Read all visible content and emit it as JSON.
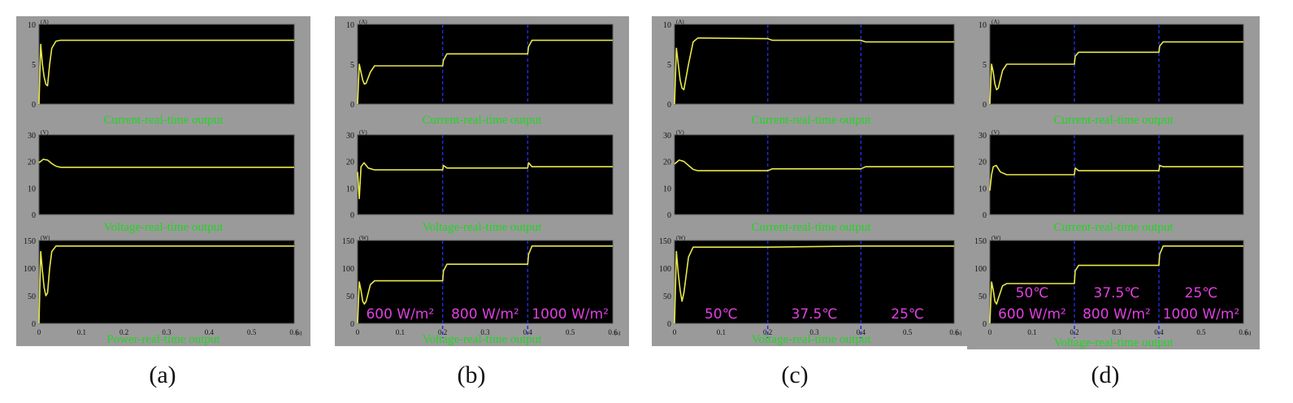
{
  "panel_labels": [
    "(a)",
    "(b)",
    "(c)",
    "(d)"
  ],
  "colors": {
    "frame": "#9a9a9a",
    "plot_bg": "#000000",
    "trace": "#e8e84a",
    "divider": "#1f2bd6",
    "subplot_title": "#1fd61f",
    "condition_label": "#e040e0",
    "tick": "#111111"
  },
  "chart_data": [
    {
      "type": "line",
      "panel": "(a)",
      "x_ticks": [
        "0",
        "0.1",
        "0.2",
        "0.3",
        "0.4",
        "0.5",
        "0.6"
      ],
      "x_unit": "(s)",
      "dividers": [],
      "conditions": [],
      "subplots": [
        {
          "title": "Current-real-time output",
          "unit": "(A)",
          "ylim": [
            0,
            10
          ],
          "y_ticks": [
            "0",
            "5",
            "10"
          ],
          "series": [
            {
              "x": [
                0,
                0.004,
                0.008,
                0.012,
                0.016,
                0.02,
                0.025,
                0.03,
                0.04,
                0.05,
                0.6
              ],
              "y": [
                0,
                7.5,
                5,
                3.4,
                2.5,
                2.3,
                5,
                7,
                7.9,
                8,
                8
              ]
            }
          ]
        },
        {
          "title": "Voltage-real-time output",
          "unit": "(V)",
          "ylim": [
            0,
            30
          ],
          "y_ticks": [
            "0",
            "10",
            "20",
            "30"
          ],
          "series": [
            {
              "x": [
                0,
                0.01,
                0.02,
                0.03,
                0.04,
                0.05,
                0.6
              ],
              "y": [
                19.5,
                20.8,
                20.5,
                19.2,
                18.2,
                17.8,
                17.8
              ]
            }
          ]
        },
        {
          "title": "Power-real-time output",
          "unit": "(W)",
          "ylim": [
            0,
            150
          ],
          "y_ticks": [
            "0",
            "50",
            "100",
            "150"
          ],
          "series": [
            {
              "x": [
                0,
                0.004,
                0.008,
                0.012,
                0.016,
                0.02,
                0.025,
                0.03,
                0.04,
                0.6
              ],
              "y": [
                0,
                130,
                95,
                65,
                50,
                55,
                100,
                130,
                140,
                140
              ]
            }
          ]
        }
      ]
    },
    {
      "type": "line",
      "panel": "(b)",
      "x_ticks": [
        "0",
        "0.1",
        "0.2",
        "0.3",
        "0.4",
        "0.5",
        "0.6"
      ],
      "x_unit": "(s)",
      "dividers": [
        0.2,
        0.4
      ],
      "conditions": [
        {
          "x": 0.1,
          "lines": [
            "600 W/m²"
          ]
        },
        {
          "x": 0.3,
          "lines": [
            "800 W/m²"
          ]
        },
        {
          "x": 0.5,
          "lines": [
            "1000 W/m²"
          ]
        }
      ],
      "subplots": [
        {
          "title": "Current-real-time output",
          "unit": "(A)",
          "ylim": [
            0,
            10
          ],
          "y_ticks": [
            "0",
            "5",
            "10"
          ],
          "series": [
            {
              "x": [
                0,
                0.004,
                0.008,
                0.012,
                0.016,
                0.02,
                0.03,
                0.04,
                0.2,
                0.202,
                0.21,
                0.4,
                0.402,
                0.41,
                0.6
              ],
              "y": [
                0,
                5,
                4,
                3,
                2.5,
                2.6,
                4,
                4.8,
                4.8,
                5.5,
                6.3,
                6.3,
                7.2,
                8,
                8
              ]
            }
          ]
        },
        {
          "title": "Voltage-real-time output",
          "unit": "(V)",
          "ylim": [
            0,
            30
          ],
          "y_ticks": [
            "0",
            "10",
            "20",
            "30"
          ],
          "series": [
            {
              "x": [
                0,
                0.004,
                0.008,
                0.015,
                0.025,
                0.04,
                0.2,
                0.202,
                0.21,
                0.4,
                0.402,
                0.41,
                0.6
              ],
              "y": [
                16,
                6,
                18,
                19.5,
                17.5,
                16.8,
                16.8,
                18.5,
                17.5,
                17.5,
                19.5,
                18,
                18
              ]
            }
          ]
        },
        {
          "title": "Voltage-real-time output",
          "unit": "(W)",
          "ylim": [
            0,
            150
          ],
          "y_ticks": [
            "0",
            "50",
            "100",
            "150"
          ],
          "series": [
            {
              "x": [
                0,
                0.004,
                0.008,
                0.012,
                0.016,
                0.02,
                0.03,
                0.04,
                0.2,
                0.202,
                0.21,
                0.4,
                0.402,
                0.41,
                0.6
              ],
              "y": [
                0,
                75,
                60,
                40,
                35,
                40,
                70,
                77,
                77,
                95,
                107,
                107,
                125,
                140,
                140
              ]
            }
          ]
        }
      ]
    },
    {
      "type": "line",
      "panel": "(c)",
      "x_ticks": [
        "0",
        "0.1",
        "0.2",
        "0.3",
        "0.4",
        "0.5",
        "0.6"
      ],
      "x_unit": "(s)",
      "dividers": [
        0.2,
        0.4
      ],
      "conditions": [
        {
          "x": 0.1,
          "lines": [
            "50℃"
          ]
        },
        {
          "x": 0.3,
          "lines": [
            "37.5℃"
          ]
        },
        {
          "x": 0.5,
          "lines": [
            "25℃"
          ]
        }
      ],
      "subplots": [
        {
          "title": "Current-real-time output",
          "unit": "(A)",
          "ylim": [
            0,
            10
          ],
          "y_ticks": [
            "0",
            "5",
            "10"
          ],
          "series": [
            {
              "x": [
                0,
                0.004,
                0.008,
                0.012,
                0.016,
                0.02,
                0.03,
                0.04,
                0.05,
                0.2,
                0.21,
                0.4,
                0.41,
                0.6
              ],
              "y": [
                0,
                7,
                5,
                3,
                2,
                1.8,
                5,
                7.8,
                8.3,
                8.2,
                8,
                8,
                7.8,
                7.8
              ]
            }
          ]
        },
        {
          "title": "Current-real-time output",
          "unit": "(V)",
          "ylim": [
            0,
            30
          ],
          "y_ticks": [
            "0",
            "10",
            "20",
            "30"
          ],
          "series": [
            {
              "x": [
                0,
                0.01,
                0.02,
                0.03,
                0.04,
                0.05,
                0.2,
                0.21,
                0.4,
                0.41,
                0.6
              ],
              "y": [
                19,
                20.5,
                20,
                18.5,
                17,
                16.5,
                16.5,
                17.2,
                17.2,
                18,
                18
              ]
            }
          ]
        },
        {
          "title": "Voltage-real-time output",
          "unit": "(W)",
          "ylim": [
            0,
            150
          ],
          "y_ticks": [
            "0",
            "50",
            "100",
            "150"
          ],
          "series": [
            {
              "x": [
                0,
                0.004,
                0.008,
                0.012,
                0.016,
                0.02,
                0.03,
                0.04,
                0.2,
                0.4,
                0.6
              ],
              "y": [
                0,
                130,
                90,
                60,
                40,
                55,
                120,
                138,
                138,
                140,
                140
              ]
            }
          ]
        }
      ]
    },
    {
      "type": "line",
      "panel": "(d)",
      "x_ticks": [
        "0",
        "0.1",
        "0.2",
        "0.3",
        "0.4",
        "0.5",
        "0.6"
      ],
      "x_unit": "(s)",
      "dividers": [
        0.2,
        0.4
      ],
      "conditions": [
        {
          "x": 0.1,
          "lines": [
            "50℃",
            "600 W/m²"
          ]
        },
        {
          "x": 0.3,
          "lines": [
            "37.5℃",
            "800 W/m²"
          ]
        },
        {
          "x": 0.5,
          "lines": [
            "25℃",
            "1000 W/m²"
          ]
        }
      ],
      "subplots": [
        {
          "title": "Current-real-time output",
          "unit": "(A)",
          "ylim": [
            0,
            10
          ],
          "y_ticks": [
            "0",
            "5",
            "10"
          ],
          "series": [
            {
              "x": [
                0,
                0.004,
                0.008,
                0.012,
                0.016,
                0.02,
                0.03,
                0.04,
                0.2,
                0.202,
                0.21,
                0.4,
                0.402,
                0.41,
                0.6
              ],
              "y": [
                0,
                5,
                4,
                2.5,
                1.8,
                2,
                4.2,
                5,
                5,
                6,
                6.5,
                6.5,
                7.3,
                7.8,
                7.8
              ]
            }
          ]
        },
        {
          "title": "Current-real-time output",
          "unit": "(V)",
          "ylim": [
            0,
            30
          ],
          "y_ticks": [
            "0",
            "10",
            "20",
            "30"
          ],
          "series": [
            {
              "x": [
                0,
                0.004,
                0.008,
                0.015,
                0.025,
                0.04,
                0.2,
                0.202,
                0.21,
                0.4,
                0.402,
                0.41,
                0.6
              ],
              "y": [
                9,
                15,
                18,
                18.5,
                16,
                15,
                15,
                17.5,
                16.5,
                16.5,
                18.5,
                18,
                18
              ]
            }
          ]
        },
        {
          "title": "Voltage-real-time output",
          "unit": "(W)",
          "ylim": [
            0,
            150
          ],
          "y_ticks": [
            "0",
            "50",
            "100",
            "150"
          ],
          "series": [
            {
              "x": [
                0,
                0.004,
                0.008,
                0.012,
                0.016,
                0.02,
                0.03,
                0.04,
                0.2,
                0.202,
                0.21,
                0.4,
                0.402,
                0.41,
                0.6
              ],
              "y": [
                0,
                75,
                60,
                40,
                35,
                45,
                68,
                72,
                72,
                95,
                105,
                105,
                125,
                140,
                140
              ]
            }
          ]
        }
      ]
    }
  ]
}
